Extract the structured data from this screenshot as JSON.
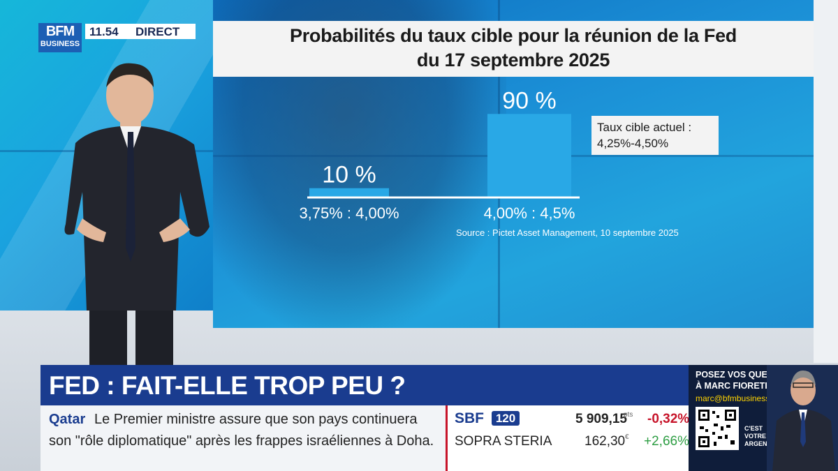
{
  "branding": {
    "logo_top": "BFM",
    "logo_bottom": "BUSINESS",
    "time": "11.54",
    "live_label": "DIRECT"
  },
  "chart_data": {
    "type": "bar",
    "title_line1": "Probabilités du taux cible pour la réunion de la Fed",
    "title_line2": "du 17 septembre 2025",
    "categories": [
      "3,75% : 4,00%",
      "4,00% : 4,5%"
    ],
    "values": [
      10,
      90
    ],
    "value_labels": [
      "10 %",
      "90 %"
    ],
    "unit": "%",
    "ylim": [
      0,
      100
    ],
    "bar_color": "#29a8e6",
    "annotation_line1": "Taux cible actuel :",
    "annotation_line2": "4,25%-4,50%",
    "source": "Source : Pictet Asset Management, 10 septembre 2025",
    "grid": false,
    "legend": "none"
  },
  "headline": {
    "text": "FED : FAIT-ELLE TROP PEU ?"
  },
  "ticker": {
    "source": "Qatar",
    "line1": "Le Premier ministre assure que son pays continuera",
    "line2": "son \"rôle diplomatique\" après les frappes israéliennes à Doha."
  },
  "market": {
    "index_name": "SBF",
    "index_number": "120",
    "index_value": "5 909,15",
    "index_unit": "pts",
    "index_change": "-0,32%",
    "stock_name": "SOPRA STERIA",
    "stock_value": "162,30",
    "stock_unit": "€",
    "stock_change": "+2,66%"
  },
  "promo": {
    "line1": "POSEZ VOS QUESTIONS",
    "line2": "À MARC FIORETINO",
    "email": "marc@bfmbusiness.fr",
    "tag_line1": "C'EST",
    "tag_line2": "VOTRE",
    "tag_line3": "ARGENT"
  },
  "colors": {
    "brand_blue": "#1a3c8f",
    "negative": "#c7142a",
    "positive": "#2e9e44"
  }
}
